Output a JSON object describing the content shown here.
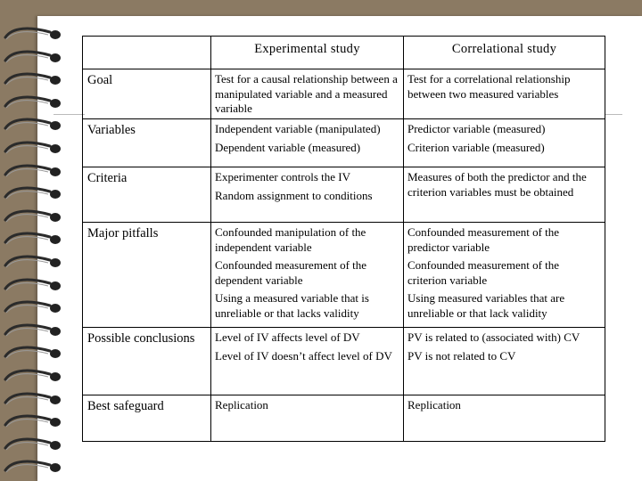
{
  "table": {
    "columns": [
      "",
      "Experimental study",
      "Correlational study"
    ],
    "rows": [
      {
        "label": "Goal",
        "experimental": [
          "Test for a causal relationship between a manipulated variable and a measured variable"
        ],
        "correlational": [
          "Test for a correlational relationship between two measured variables"
        ]
      },
      {
        "label": "Variables",
        "experimental": [
          "Independent variable (manipulated)",
          "Dependent variable (measured)"
        ],
        "correlational": [
          "Predictor variable (measured)",
          "Criterion variable (measured)"
        ]
      },
      {
        "label": "Criteria",
        "experimental": [
          "Experimenter controls the IV",
          "Random assignment to conditions"
        ],
        "correlational": [
          "Measures of both the predictor and the criterion variables must be obtained"
        ]
      },
      {
        "label": "Major pitfalls",
        "experimental": [
          "Confounded manipulation of the independent variable",
          "Confounded measurement of the dependent variable",
          "Using a measured variable that is unreliable or that lacks validity"
        ],
        "correlational": [
          "Confounded measurement of the predictor variable",
          "Confounded measurement of the criterion variable",
          "Using measured variables that are unreliable or that lack validity"
        ]
      },
      {
        "label": "Possible conclusions",
        "experimental": [
          "Level of IV affects level of DV",
          "Level of IV doesn’t affect level of DV"
        ],
        "correlational": [
          "PV is related to (associated with) CV",
          "PV is not related to CV"
        ]
      },
      {
        "label": "Best safeguard",
        "experimental": [
          "Replication"
        ],
        "correlational": [
          "Replication"
        ]
      }
    ]
  },
  "colors": {
    "background": "#8b7a63",
    "page": "#ffffff",
    "ring": "#2b2b2b"
  }
}
